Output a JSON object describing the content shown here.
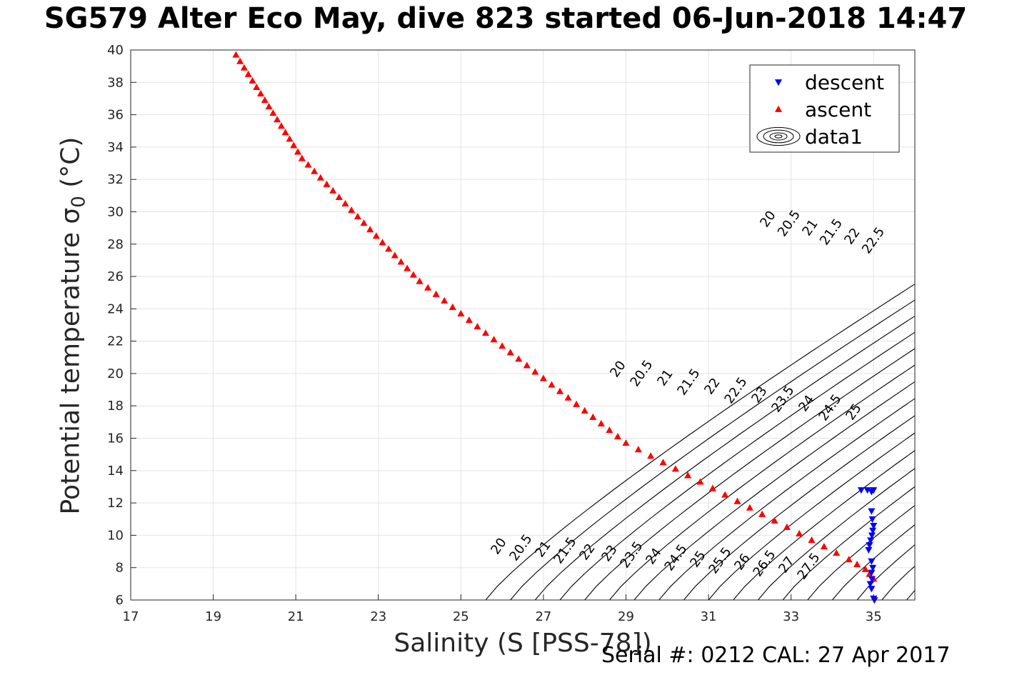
{
  "title": "SG579 Alter Eco May, dive 823 started 06-Jun-2018 14:47",
  "xlabel": "Salinity (S [PSS-78])",
  "ylabel": "Potential temperature σ",
  "ylabel_sub": "0",
  "ylabel_unit": "(°C)",
  "footer": "Serial #: 0212  CAL: 27 Apr 2017",
  "legend": {
    "placement": "top-right",
    "items": [
      {
        "label": "descent",
        "marker": "triangle-down",
        "color": "#0000ff"
      },
      {
        "label": "ascent",
        "marker": "triangle-up",
        "color": "#ff0000"
      },
      {
        "label": "data1",
        "marker": "contour",
        "color": "#000000"
      }
    ]
  },
  "chart_data": {
    "type": "scatter",
    "xlim": [
      17,
      36
    ],
    "ylim": [
      6,
      40
    ],
    "xticks": [
      17,
      19,
      21,
      23,
      25,
      27,
      29,
      31,
      33,
      35
    ],
    "yticks": [
      6,
      8,
      10,
      12,
      14,
      16,
      18,
      20,
      22,
      24,
      26,
      28,
      30,
      32,
      34,
      36,
      38,
      40
    ],
    "grid": true,
    "series": [
      {
        "name": "ascent",
        "marker": "triangle-up",
        "color": "#ff0000",
        "points": [
          [
            19.55,
            39.7
          ],
          [
            19.65,
            39.3
          ],
          [
            19.75,
            38.9
          ],
          [
            19.85,
            38.5
          ],
          [
            19.95,
            38.1
          ],
          [
            20.05,
            37.7
          ],
          [
            20.15,
            37.3
          ],
          [
            20.25,
            36.9
          ],
          [
            20.35,
            36.5
          ],
          [
            20.45,
            36.1
          ],
          [
            20.55,
            35.7
          ],
          [
            20.65,
            35.3
          ],
          [
            20.75,
            34.9
          ],
          [
            20.85,
            34.5
          ],
          [
            20.95,
            34.1
          ],
          [
            21.05,
            33.7
          ],
          [
            21.15,
            33.3
          ],
          [
            21.3,
            32.9
          ],
          [
            21.45,
            32.5
          ],
          [
            21.6,
            32.1
          ],
          [
            21.75,
            31.7
          ],
          [
            21.9,
            31.3
          ],
          [
            22.05,
            30.9
          ],
          [
            22.2,
            30.5
          ],
          [
            22.35,
            30.1
          ],
          [
            22.5,
            29.7
          ],
          [
            22.65,
            29.3
          ],
          [
            22.8,
            28.9
          ],
          [
            22.95,
            28.5
          ],
          [
            23.1,
            28.1
          ],
          [
            23.25,
            27.7
          ],
          [
            23.4,
            27.3
          ],
          [
            23.55,
            26.9
          ],
          [
            23.7,
            26.5
          ],
          [
            23.85,
            26.1
          ],
          [
            24.0,
            25.7
          ],
          [
            24.2,
            25.3
          ],
          [
            24.4,
            24.9
          ],
          [
            24.6,
            24.5
          ],
          [
            24.8,
            24.1
          ],
          [
            25.0,
            23.7
          ],
          [
            25.2,
            23.3
          ],
          [
            25.4,
            22.9
          ],
          [
            25.6,
            22.5
          ],
          [
            25.8,
            22.1
          ],
          [
            26.0,
            21.7
          ],
          [
            26.2,
            21.3
          ],
          [
            26.4,
            20.9
          ],
          [
            26.6,
            20.5
          ],
          [
            26.8,
            20.1
          ],
          [
            27.0,
            19.7
          ],
          [
            27.2,
            19.3
          ],
          [
            27.4,
            18.9
          ],
          [
            27.6,
            18.5
          ],
          [
            27.8,
            18.1
          ],
          [
            28.0,
            17.7
          ],
          [
            28.2,
            17.3
          ],
          [
            28.4,
            16.9
          ],
          [
            28.6,
            16.5
          ],
          [
            28.8,
            16.1
          ],
          [
            29.0,
            15.7
          ],
          [
            29.3,
            15.3
          ],
          [
            29.6,
            14.9
          ],
          [
            29.9,
            14.5
          ],
          [
            30.2,
            14.1
          ],
          [
            30.5,
            13.7
          ],
          [
            30.8,
            13.3
          ],
          [
            31.1,
            12.9
          ],
          [
            31.4,
            12.5
          ],
          [
            31.7,
            12.1
          ],
          [
            32.0,
            11.7
          ],
          [
            32.3,
            11.3
          ],
          [
            32.6,
            10.9
          ],
          [
            32.9,
            10.5
          ],
          [
            33.2,
            10.1
          ],
          [
            33.5,
            9.7
          ],
          [
            33.8,
            9.3
          ],
          [
            34.1,
            8.9
          ],
          [
            34.4,
            8.5
          ],
          [
            34.6,
            8.2
          ],
          [
            34.8,
            7.9
          ],
          [
            34.9,
            7.6
          ],
          [
            35.0,
            7.3
          ]
        ]
      },
      {
        "name": "descent",
        "marker": "triangle-down",
        "color": "#0000ff",
        "points": [
          [
            34.7,
            12.8
          ],
          [
            34.85,
            12.8
          ],
          [
            34.95,
            12.7
          ],
          [
            35.0,
            12.8
          ],
          [
            34.95,
            11.5
          ],
          [
            34.97,
            11.0
          ],
          [
            35.0,
            10.6
          ],
          [
            34.98,
            10.3
          ],
          [
            34.96,
            10.0
          ],
          [
            34.93,
            9.7
          ],
          [
            34.9,
            9.4
          ],
          [
            34.88,
            9.1
          ],
          [
            34.95,
            8.4
          ],
          [
            34.98,
            8.0
          ],
          [
            34.95,
            7.7
          ],
          [
            34.96,
            7.3
          ],
          [
            34.92,
            7.0
          ],
          [
            34.95,
            6.7
          ],
          [
            35.0,
            6.1
          ],
          [
            35.02,
            6.0
          ]
        ]
      }
    ],
    "contours": {
      "name": "data1",
      "levels": [
        20,
        20.5,
        21,
        21.5,
        22,
        22.5,
        23,
        23.5,
        24,
        24.5,
        25,
        25.5,
        26,
        26.5,
        27,
        27.5,
        28,
        28.5
      ]
    },
    "contour_labels_top": [
      "20",
      "20.5",
      "21",
      "21.5",
      "22",
      "22.5"
    ],
    "contour_labels_mid": [
      "20",
      "20.5",
      "21",
      "21.5",
      "22",
      "22.5",
      "23",
      "23.5",
      "24",
      "24.5",
      "25"
    ],
    "contour_labels_bottom": [
      "20",
      "20.5",
      "21",
      "21.5",
      "22",
      "23",
      "23.5",
      "24",
      "24.5",
      "25",
      "25.5",
      "26",
      "26.5",
      "27",
      "27.5"
    ]
  }
}
